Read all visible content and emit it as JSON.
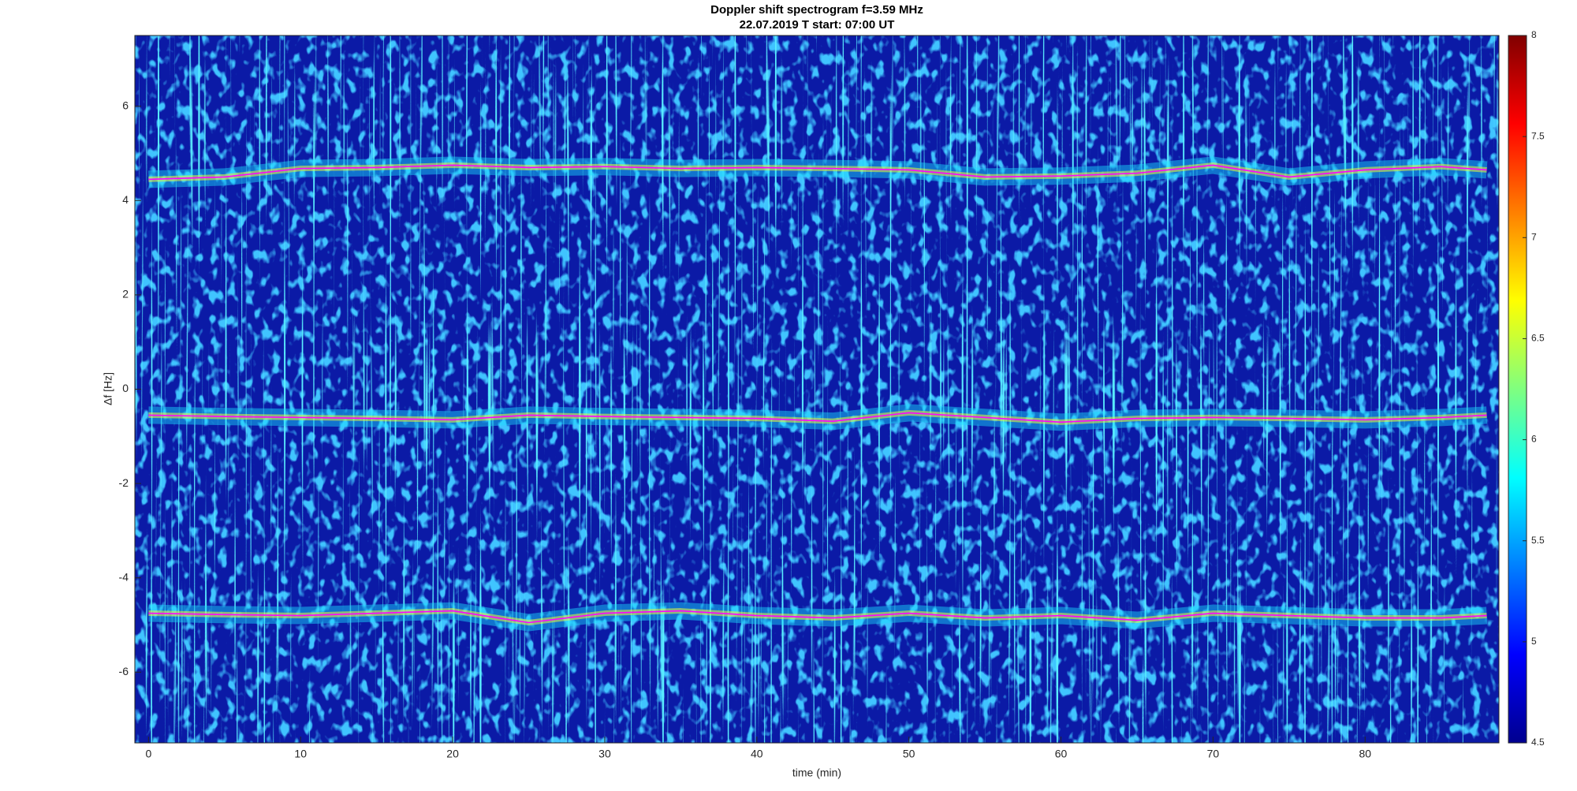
{
  "chart_data": {
    "type": "spectrogram",
    "title": "Doppler shift spectrogram f=3.59 MHz",
    "subtitle": "22.07.2019   T start: 07:00 UT",
    "x_label": "time (min)",
    "y_label": "Δf [Hz]",
    "xlim": [
      -0.9,
      88.8
    ],
    "xticks": [
      0,
      10,
      20,
      30,
      40,
      50,
      60,
      70,
      80
    ],
    "ylim": [
      -7.5,
      7.5
    ],
    "yticks": [
      -6,
      -4,
      -2,
      0,
      2,
      4,
      6
    ],
    "colormap": "jet",
    "clim": [
      4.5,
      8
    ],
    "cticks": [
      4.5,
      5,
      5.5,
      6,
      6.5,
      7,
      7.5,
      8
    ],
    "x": [
      0,
      5,
      10,
      15,
      20,
      25,
      30,
      35,
      40,
      45,
      50,
      55,
      60,
      65,
      70,
      75,
      80,
      85,
      88
    ],
    "series": [
      {
        "color": "#ff00ff",
        "values": [
          4.45,
          4.5,
          4.68,
          4.7,
          4.75,
          4.7,
          4.72,
          4.68,
          4.7,
          4.68,
          4.65,
          4.5,
          4.52,
          4.58,
          4.75,
          4.5,
          4.65,
          4.72,
          4.65
        ]
      },
      {
        "color": "#ff00ff",
        "values": [
          -0.55,
          -0.58,
          -0.6,
          -0.62,
          -0.65,
          -0.55,
          -0.58,
          -0.6,
          -0.62,
          -0.68,
          -0.5,
          -0.6,
          -0.7,
          -0.62,
          -0.6,
          -0.62,
          -0.65,
          -0.6,
          -0.55
        ]
      },
      {
        "color": "#ff00ff",
        "values": [
          -4.75,
          -4.78,
          -4.8,
          -4.75,
          -4.7,
          -4.95,
          -4.75,
          -4.7,
          -4.8,
          -4.85,
          -4.75,
          -4.85,
          -4.8,
          -4.9,
          -4.75,
          -4.8,
          -4.85,
          -4.85,
          -4.8
        ]
      }
    ]
  }
}
